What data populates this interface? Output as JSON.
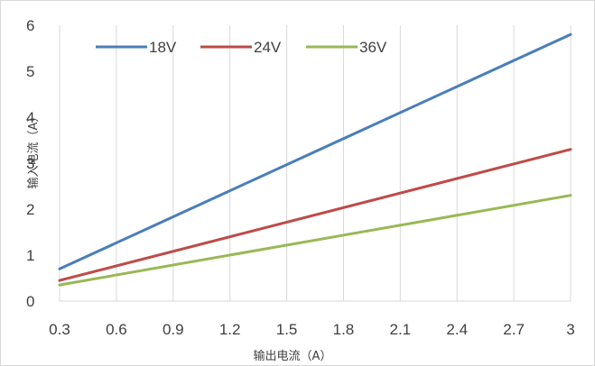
{
  "chart_data": {
    "type": "line",
    "title": "",
    "xlabel": "输出电流（A）",
    "ylabel": "输入电流（A）",
    "x_ticks": [
      "0.3",
      "0.6",
      "0.9",
      "1.2",
      "1.5",
      "1.8",
      "2.1",
      "2.4",
      "2.7",
      "3"
    ],
    "y_ticks": [
      "0",
      "1",
      "2",
      "3",
      "4",
      "5",
      "6"
    ],
    "xlim": [
      0.3,
      3
    ],
    "ylim": [
      0,
      6
    ],
    "grid": "vertical",
    "legend_position": "top-left",
    "series": [
      {
        "name": "18V",
        "color": "#4a7ebb",
        "x": [
          0.3,
          3
        ],
        "y": [
          0.7,
          5.8
        ]
      },
      {
        "name": "24V",
        "color": "#be4b48",
        "x": [
          0.3,
          3
        ],
        "y": [
          0.45,
          3.3
        ]
      },
      {
        "name": "36V",
        "color": "#98b954",
        "x": [
          0.3,
          3
        ],
        "y": [
          0.35,
          2.3
        ]
      }
    ]
  }
}
